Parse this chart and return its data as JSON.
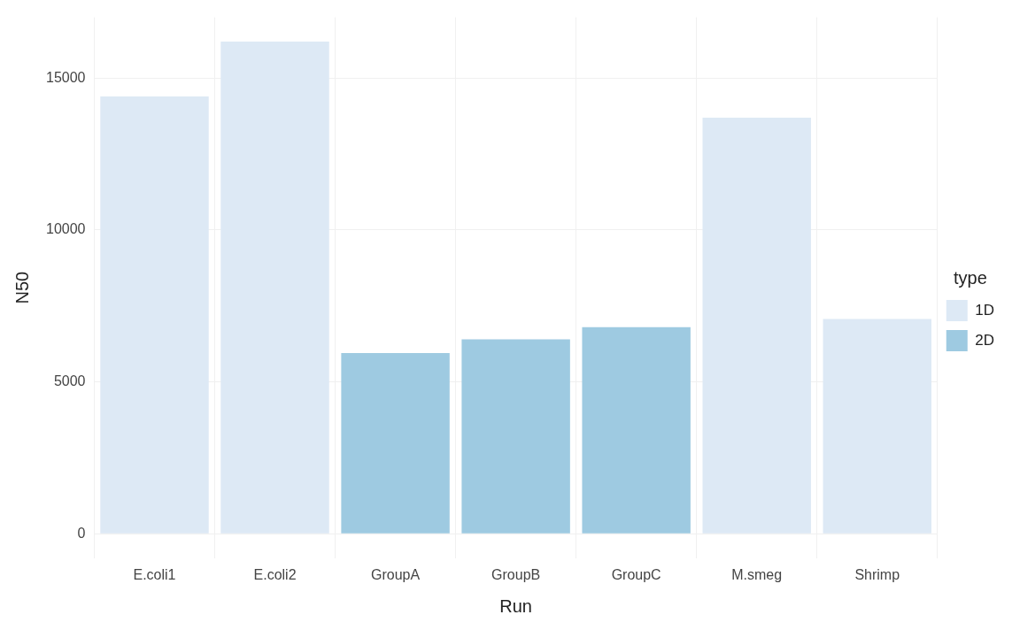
{
  "chart_data": {
    "type": "bar",
    "xlabel": "Run",
    "ylabel": "N50",
    "legend_title": "type",
    "categories": [
      "E.coli1",
      "E.coli2",
      "GroupA",
      "GroupB",
      "GroupC",
      "M.smeg",
      "Shrimp"
    ],
    "series": [
      {
        "name": "1D",
        "color": "#dde9f5",
        "values": [
          14400,
          16200,
          null,
          null,
          null,
          13700,
          7070
        ]
      },
      {
        "name": "2D",
        "color": "#9ecae1",
        "values": [
          null,
          null,
          5950,
          6400,
          6800,
          null,
          null
        ]
      }
    ],
    "ylim": [
      -800,
      17000
    ],
    "yticks": [
      0,
      5000,
      10000,
      15000
    ],
    "grid": true,
    "legend": "right"
  }
}
